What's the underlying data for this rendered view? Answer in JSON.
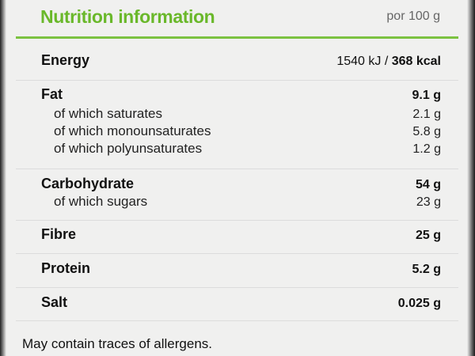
{
  "header": {
    "title": "Nutrition information",
    "per": "por 100 g",
    "accent": "#6ab82a"
  },
  "energy": {
    "label": "Energy",
    "kj": "1540 kJ",
    "separator": " / ",
    "kcal": "368 kcal"
  },
  "fat": {
    "label": "Fat",
    "value": "9.1 g",
    "subs": [
      {
        "label": "of which saturates",
        "value": "2.1 g"
      },
      {
        "label": "of which monounsaturates",
        "value": "5.8 g"
      },
      {
        "label": "of which polyunsaturates",
        "value": "1.2 g"
      }
    ]
  },
  "carbohydrate": {
    "label": "Carbohydrate",
    "value": "54 g",
    "subs": [
      {
        "label": "of which sugars",
        "value": "23 g"
      }
    ]
  },
  "fibre": {
    "label": "Fibre",
    "value": "25 g"
  },
  "protein": {
    "label": "Protein",
    "value": "5.2 g"
  },
  "salt": {
    "label": "Salt",
    "value": "0.025 g"
  },
  "footer": "May contain traces of allergens."
}
